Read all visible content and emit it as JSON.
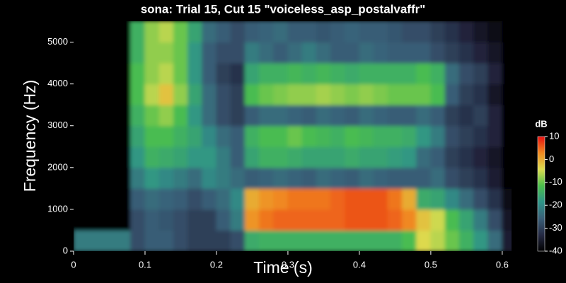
{
  "chart_data": {
    "type": "spectrogram",
    "title": "sona: Trial 15, Cut 15 \"voiceless_asp_postalvaffr\"",
    "x_label": "Time (s)",
    "y_label": "Frequency (Hz)",
    "colorbar_label": "dB",
    "xlim": [
      0,
      0.613
    ],
    "xticks": [
      0,
      0.1,
      0.2,
      0.3,
      0.4,
      0.5,
      0.6
    ],
    "ylim": [
      0,
      5500
    ],
    "yticks": [
      0,
      1000,
      2000,
      3000,
      4000,
      5000
    ],
    "clim": [
      -40,
      10
    ],
    "cticks": [
      10,
      0,
      -10,
      -20,
      -30,
      -40
    ],
    "colormap": [
      "#000000",
      "#262b45",
      "#3a5f78",
      "#2e9488",
      "#4cbf4c",
      "#dcdc50",
      "#f08a20",
      "#e81010"
    ],
    "time_bins": [
      0,
      0.02,
      0.04,
      0.06,
      0.08,
      0.1,
      0.12,
      0.14,
      0.16,
      0.18,
      0.2,
      0.22,
      0.24,
      0.26,
      0.28,
      0.3,
      0.32,
      0.34,
      0.36,
      0.38,
      0.4,
      0.42,
      0.44,
      0.46,
      0.48,
      0.5,
      0.52,
      0.54,
      0.56,
      0.58,
      0.6,
      0.62
    ],
    "freq_bins": [
      0,
      500,
      1000,
      1500,
      2000,
      2500,
      3000,
      3500,
      4000,
      4500,
      5000,
      5500
    ],
    "z": [
      [
        -22,
        -22,
        -22,
        -22,
        -28,
        -26,
        -26,
        -28,
        -30,
        -30,
        -30,
        -28,
        -15,
        -14,
        -14,
        -14,
        -14,
        -14,
        -14,
        -14,
        -14,
        -14,
        -14,
        -12,
        -4,
        -6,
        -10,
        -14,
        -18,
        -24,
        -35
      ],
      [
        -40,
        -40,
        -40,
        -40,
        -28,
        -26,
        -27,
        -28,
        -30,
        -30,
        -26,
        -22,
        2,
        4,
        5,
        5,
        5,
        5,
        5,
        6,
        6,
        6,
        5,
        3,
        -2,
        -5,
        -12,
        -16,
        -22,
        -28,
        -36
      ],
      [
        -40,
        -40,
        -40,
        -40,
        -26,
        -24,
        -25,
        -26,
        -28,
        -26,
        -24,
        -20,
        0,
        2,
        3,
        4,
        4,
        4,
        5,
        6,
        6,
        6,
        4,
        0,
        -15,
        -16,
        -20,
        -24,
        -28,
        -32,
        -38
      ],
      [
        -40,
        -40,
        -40,
        -40,
        -22,
        -18,
        -20,
        -22,
        -24,
        -20,
        -22,
        -24,
        -26,
        -25,
        -24,
        -25,
        -26,
        -24,
        -25,
        -26,
        -24,
        -25,
        -26,
        -26,
        -26,
        -24,
        -28,
        -30,
        -32,
        -35,
        -40
      ],
      [
        -40,
        -40,
        -40,
        -40,
        -18,
        -14,
        -15,
        -16,
        -18,
        -18,
        -22,
        -26,
        -16,
        -14,
        -14,
        -15,
        -16,
        -16,
        -16,
        -15,
        -16,
        -16,
        -17,
        -18,
        -24,
        -26,
        -30,
        -32,
        -34,
        -36,
        -40
      ],
      [
        -40,
        -40,
        -40,
        -40,
        -16,
        -12,
        -12,
        -14,
        -16,
        -20,
        -24,
        -26,
        -14,
        -12,
        -12,
        -10,
        -12,
        -13,
        -14,
        -12,
        -13,
        -14,
        -14,
        -15,
        -18,
        -22,
        -28,
        -30,
        -32,
        -34,
        -40
      ],
      [
        -40,
        -40,
        -40,
        -40,
        -14,
        -10,
        -8,
        -12,
        -18,
        -24,
        -28,
        -30,
        -26,
        -24,
        -24,
        -25,
        -26,
        -24,
        -25,
        -26,
        -24,
        -25,
        -26,
        -26,
        -24,
        -26,
        -30,
        -32,
        -30,
        -34,
        -40
      ],
      [
        -40,
        -40,
        -40,
        -40,
        -12,
        -6,
        -2,
        -8,
        -16,
        -24,
        -28,
        -30,
        -12,
        -10,
        -9,
        -8,
        -8,
        -7,
        -8,
        -9,
        -8,
        -9,
        -10,
        -10,
        -10,
        -12,
        -26,
        -30,
        -32,
        -36,
        -40
      ],
      [
        -40,
        -40,
        -40,
        -40,
        -12,
        -8,
        -6,
        -10,
        -18,
        -26,
        -30,
        -32,
        -16,
        -14,
        -14,
        -13,
        -14,
        -13,
        -14,
        -15,
        -14,
        -14,
        -14,
        -14,
        -12,
        -14,
        -24,
        -28,
        -30,
        -34,
        -40
      ],
      [
        -40,
        -40,
        -40,
        -40,
        -14,
        -8,
        -8,
        -10,
        -18,
        -26,
        -28,
        -28,
        -22,
        -24,
        -26,
        -24,
        -22,
        -24,
        -26,
        -26,
        -24,
        -25,
        -26,
        -26,
        -26,
        -28,
        -30,
        -32,
        -34,
        -36,
        -40
      ],
      [
        -40,
        -40,
        -40,
        -40,
        -14,
        -8,
        -6,
        -10,
        -16,
        -24,
        -26,
        -28,
        -26,
        -25,
        -24,
        -26,
        -26,
        -27,
        -26,
        -25,
        -26,
        -26,
        -27,
        -28,
        -28,
        -30,
        -32,
        -34,
        -36,
        -38,
        -40
      ]
    ]
  }
}
